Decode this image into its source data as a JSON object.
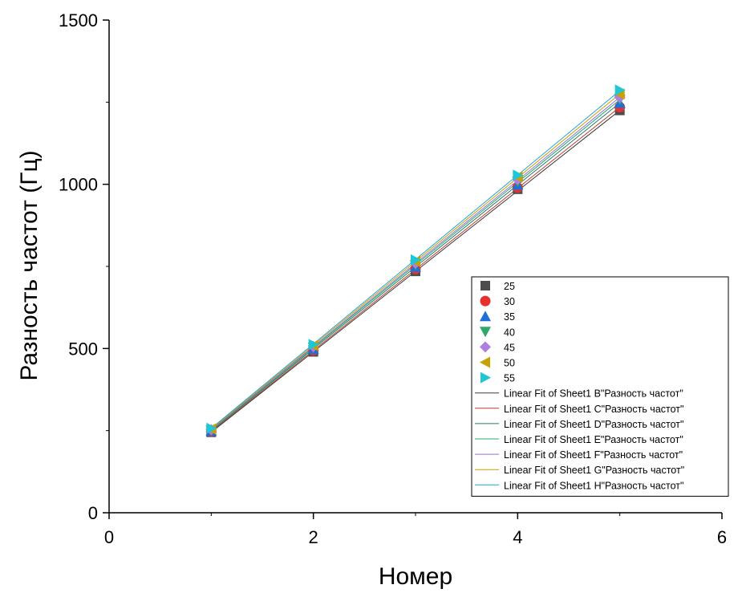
{
  "chart_data": {
    "type": "scatter",
    "xlabel": "Номер",
    "ylabel": "Разность частот (Гц)",
    "xlim": [
      0,
      6
    ],
    "ylim": [
      0,
      1500
    ],
    "x_ticks": [
      0,
      2,
      4,
      6
    ],
    "y_ticks": [
      0,
      500,
      1000,
      1500
    ],
    "grid": false,
    "legend_position": "lower-right",
    "x": [
      1,
      2,
      3,
      4,
      5
    ],
    "series": [
      {
        "name": "25",
        "marker": "square",
        "color": "#4d4d4d",
        "values": [
          245,
          490,
          735,
          985,
          1225
        ]
      },
      {
        "name": "30",
        "marker": "circle",
        "color": "#e8312f",
        "values": [
          247,
          494,
          742,
          990,
          1235
        ]
      },
      {
        "name": "35",
        "marker": "triangle-up",
        "color": "#1f6fd6",
        "values": [
          249,
          498,
          748,
          998,
          1247
        ]
      },
      {
        "name": "40",
        "marker": "triangle-down",
        "color": "#2fa86a",
        "values": [
          251,
          503,
          755,
          1008,
          1258
        ]
      },
      {
        "name": "45",
        "marker": "diamond",
        "color": "#b07ee0",
        "values": [
          253,
          506,
          760,
          1015,
          1265
        ]
      },
      {
        "name": "50",
        "marker": "triangle-left",
        "color": "#c8a000",
        "values": [
          255,
          509,
          765,
          1022,
          1275
        ]
      },
      {
        "name": "55",
        "marker": "triangle-right",
        "color": "#1fc6d6",
        "values": [
          257,
          512,
          770,
          1028,
          1287
        ]
      }
    ],
    "fits": [
      {
        "name": "Linear Fit of Sheet1 B\"Разность частот\"",
        "color": "#3a3a3a",
        "slope": 245,
        "intercept": 0
      },
      {
        "name": "Linear Fit of Sheet1 C\"Разность частот\"",
        "color": "#c0392b",
        "slope": 247,
        "intercept": 0
      },
      {
        "name": "Linear Fit of Sheet1 D\"Разность частот\"",
        "color": "#1b7f6a",
        "slope": 249.5,
        "intercept": 0
      },
      {
        "name": "Linear Fit of Sheet1 E\"Разность частот\"",
        "color": "#2ca86e",
        "slope": 251.5,
        "intercept": 0
      },
      {
        "name": "Linear Fit of Sheet1 F\"Разность частот\"",
        "color": "#9b6fd6",
        "slope": 253,
        "intercept": 0
      },
      {
        "name": "Linear Fit of Sheet1 G\"Разность частот\"",
        "color": "#c8a000",
        "slope": 255,
        "intercept": 0
      },
      {
        "name": "Linear Fit of Sheet1 H\"Разность частот\"",
        "color": "#1fa6d6",
        "slope": 257,
        "intercept": 0
      }
    ]
  }
}
